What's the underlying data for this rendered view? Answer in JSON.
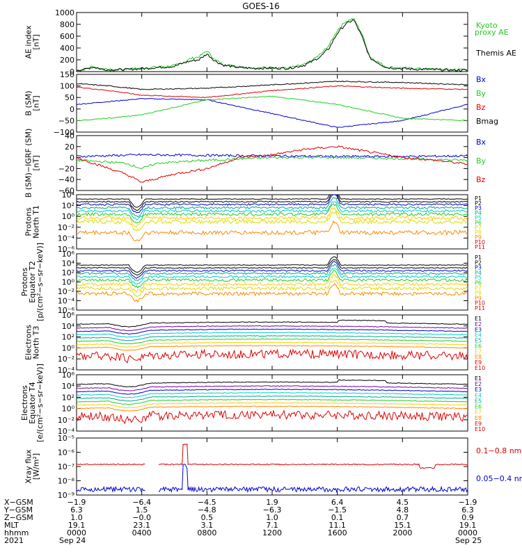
{
  "title": "GOES-16",
  "colors": {
    "black": "#000000",
    "red": "#dd0000",
    "green": "#22cc22",
    "blue": "#0000cc",
    "lime": "#33dd33",
    "purple": "#7700aa",
    "cyan": "#00cccc",
    "teal": "#00aa88",
    "orange": "#ff8800",
    "yellow": "#dddd00",
    "gold": "#ffcc00"
  },
  "chart_data": [
    {
      "id": "ae",
      "type": "line",
      "ylabel": [
        "AE index",
        "[nT]"
      ],
      "ylim": [
        0,
        1000
      ],
      "yticks": [
        "0",
        "200",
        "400",
        "600",
        "800",
        "1000"
      ],
      "legend": [
        "Kyoto proxy AE",
        "Themis AE"
      ],
      "series": [
        {
          "name": "Kyoto proxy AE",
          "color": "#22cc22",
          "x": [
            0,
            0.5,
            1,
            1.5,
            2,
            3,
            4,
            5,
            6,
            6.5,
            7,
            7.5,
            8,
            8.5,
            9,
            10,
            11,
            12,
            13,
            14,
            14.5,
            15,
            15.5,
            16,
            16.5,
            17,
            17.5,
            18,
            19,
            20,
            21,
            22,
            23,
            24
          ],
          "y": [
            30,
            40,
            90,
            50,
            30,
            40,
            60,
            80,
            100,
            150,
            220,
            250,
            350,
            200,
            120,
            80,
            60,
            70,
            60,
            120,
            200,
            300,
            450,
            700,
            850,
            900,
            650,
            250,
            80,
            60,
            50,
            40,
            30,
            30
          ]
        },
        {
          "name": "Themis AE",
          "color": "#000000",
          "x": [
            0,
            0.5,
            1,
            1.5,
            2,
            3,
            4,
            5,
            6,
            6.5,
            7,
            7.5,
            8,
            8.5,
            9,
            10,
            11,
            12,
            13,
            14,
            14.5,
            15,
            15.5,
            16,
            16.5,
            17,
            17.5,
            18,
            19,
            20,
            21,
            22,
            23,
            24
          ],
          "y": [
            25,
            35,
            80,
            45,
            30,
            35,
            50,
            70,
            90,
            140,
            180,
            200,
            300,
            180,
            110,
            70,
            55,
            60,
            55,
            110,
            180,
            260,
            400,
            650,
            800,
            880,
            600,
            230,
            70,
            50,
            40,
            35,
            25,
            25
          ]
        }
      ]
    },
    {
      "id": "bsm",
      "type": "line",
      "ylabel": [
        "B (SM)",
        "[nT]"
      ],
      "ylim": [
        -100,
        150
      ],
      "yticks": [
        "−100",
        "−50",
        "0",
        "50",
        "100",
        "150"
      ],
      "legend": [
        "Bx",
        "By",
        "Bz",
        "Bmag"
      ],
      "series": [
        {
          "name": "Bx",
          "color": "#0000cc",
          "x": [
            0,
            4,
            8,
            12,
            16,
            20,
            24
          ],
          "y": [
            20,
            45,
            40,
            -20,
            -80,
            -50,
            20
          ]
        },
        {
          "name": "By",
          "color": "#22cc22",
          "x": [
            0,
            2,
            4,
            8,
            12,
            16,
            20,
            24
          ],
          "y": [
            -50,
            -40,
            -25,
            40,
            55,
            20,
            -40,
            -50
          ]
        },
        {
          "name": "Bz",
          "color": "#dd0000",
          "x": [
            0,
            2,
            4,
            8,
            12,
            16,
            20,
            24
          ],
          "y": [
            95,
            80,
            60,
            50,
            80,
            100,
            90,
            85
          ]
        },
        {
          "name": "Bmag",
          "color": "#000000",
          "x": [
            0,
            2,
            4,
            8,
            12,
            16,
            20,
            24
          ],
          "y": [
            110,
            100,
            85,
            90,
            105,
            120,
            115,
            105
          ]
        }
      ]
    },
    {
      "id": "bigrf",
      "type": "line",
      "ylabel": [
        "B (SM)−IGRF (SM)",
        "[nT]"
      ],
      "ylim": [
        -60,
        40
      ],
      "yticks": [
        "−60",
        "−40",
        "−20",
        "0",
        "20",
        "40"
      ],
      "legend": [
        "Bx",
        "By",
        "Bz"
      ],
      "series": [
        {
          "name": "Bx",
          "color": "#0000cc",
          "x": [
            0,
            4,
            8,
            12,
            16,
            20,
            24
          ],
          "y": [
            2,
            5,
            4,
            3,
            2,
            2,
            3
          ]
        },
        {
          "name": "By",
          "color": "#22cc22",
          "x": [
            0,
            3,
            4,
            5,
            8,
            12,
            16,
            20,
            24
          ],
          "y": [
            -5,
            -10,
            -20,
            -10,
            -5,
            0,
            0,
            -2,
            -5
          ]
        },
        {
          "name": "Bz",
          "color": "#dd0000",
          "x": [
            0,
            2,
            3,
            4,
            6,
            8,
            10,
            12,
            14,
            16,
            18,
            20,
            22,
            24
          ],
          "y": [
            0,
            -20,
            -30,
            -45,
            -30,
            -20,
            0,
            5,
            15,
            20,
            10,
            0,
            -5,
            -12
          ]
        }
      ]
    },
    {
      "id": "protons_t1",
      "type": "line",
      "log": true,
      "ylabel": [
        "Protons",
        "North T1"
      ],
      "ylim_log": [
        -6,
        4
      ],
      "yticks": [
        "10⁻⁶",
        "10⁻⁴",
        "10⁻²",
        "10⁰",
        "10²",
        "10⁴"
      ],
      "legend": [
        "P1",
        "P2",
        "P3",
        "P4",
        "P5",
        "P6",
        "P7",
        "P8",
        "P9",
        "P10",
        "P11"
      ]
    },
    {
      "id": "protons_t2",
      "type": "line",
      "log": true,
      "ylabel": [
        "Protons",
        "Equator T2",
        "[p/(cm²−s−sr−keV)]"
      ],
      "ylim_log": [
        -6,
        6
      ],
      "yticks": [
        "10⁻⁶",
        "10⁻⁴",
        "10⁻²",
        "10⁰",
        "10²",
        "10⁴",
        "10⁶"
      ],
      "legend": [
        "P1",
        "P2",
        "P3",
        "P4",
        "P5",
        "P6",
        "P7",
        "P8",
        "P9",
        "P10",
        "P11"
      ]
    },
    {
      "id": "electrons_t3",
      "type": "line",
      "log": true,
      "ylabel": [
        "Electrons",
        "North T3"
      ],
      "ylim_log": [
        -4,
        6
      ],
      "yticks": [
        "10⁻⁴",
        "10⁻²",
        "10⁰",
        "10²",
        "10⁴",
        "10⁶"
      ],
      "legend": [
        "E1",
        "E2",
        "E3",
        "E4",
        "E5",
        "E6",
        "E7",
        "E8",
        "E9",
        "E10"
      ]
    },
    {
      "id": "electrons_t4",
      "type": "line",
      "log": true,
      "ylabel": [
        "Electrons",
        "Equator T4",
        "[e/(cm²−s−sr−keV)]"
      ],
      "ylim_log": [
        -4,
        6
      ],
      "yticks": [
        "10⁻⁴",
        "10⁻²",
        "10⁰",
        "10²",
        "10⁴",
        "10⁶"
      ],
      "legend": [
        "E1",
        "E2",
        "E3",
        "E4",
        "E5",
        "E6",
        "E7",
        "E8",
        "E9",
        "E10"
      ]
    },
    {
      "id": "xray",
      "type": "line",
      "log": true,
      "ylabel": [
        "Xray flux",
        "[W/m²]"
      ],
      "ylim_log": [
        -9,
        -5
      ],
      "yticks": [
        "10⁻⁹",
        "10⁻⁸",
        "10⁻⁷",
        "10⁻⁶",
        "10⁻⁵"
      ],
      "legend": [
        "0.1−0.8 nm",
        "0.05−0.4 nm"
      ]
    }
  ],
  "x_axis": {
    "ticks_hours": [
      0,
      4,
      8,
      12,
      16,
      20,
      24
    ],
    "row_labels": [
      "X−GSM",
      "Y−GSM",
      "Z−GSM",
      "MLT",
      "hhmm",
      "2021"
    ],
    "columns": [
      [
        "−1.9",
        "6.3",
        "1.0",
        "19.1",
        "0000",
        "Sep 24"
      ],
      [
        "−6.4",
        "1.5",
        "−0.0",
        "23.1",
        "0400",
        ""
      ],
      [
        "−4.5",
        "−4.8",
        "0.5",
        "3.1",
        "0800",
        ""
      ],
      [
        "1.9",
        "−6.3",
        "1.0",
        "7.1",
        "1200",
        ""
      ],
      [
        "6.4",
        "−1.5",
        "0.1",
        "11.1",
        "1600",
        ""
      ],
      [
        "4.5",
        "4.8",
        "0.7",
        "15.1",
        "2000",
        ""
      ],
      [
        "−1.9",
        "6.3",
        "0.9",
        "19.1",
        "0000",
        "Sep 25"
      ]
    ]
  }
}
